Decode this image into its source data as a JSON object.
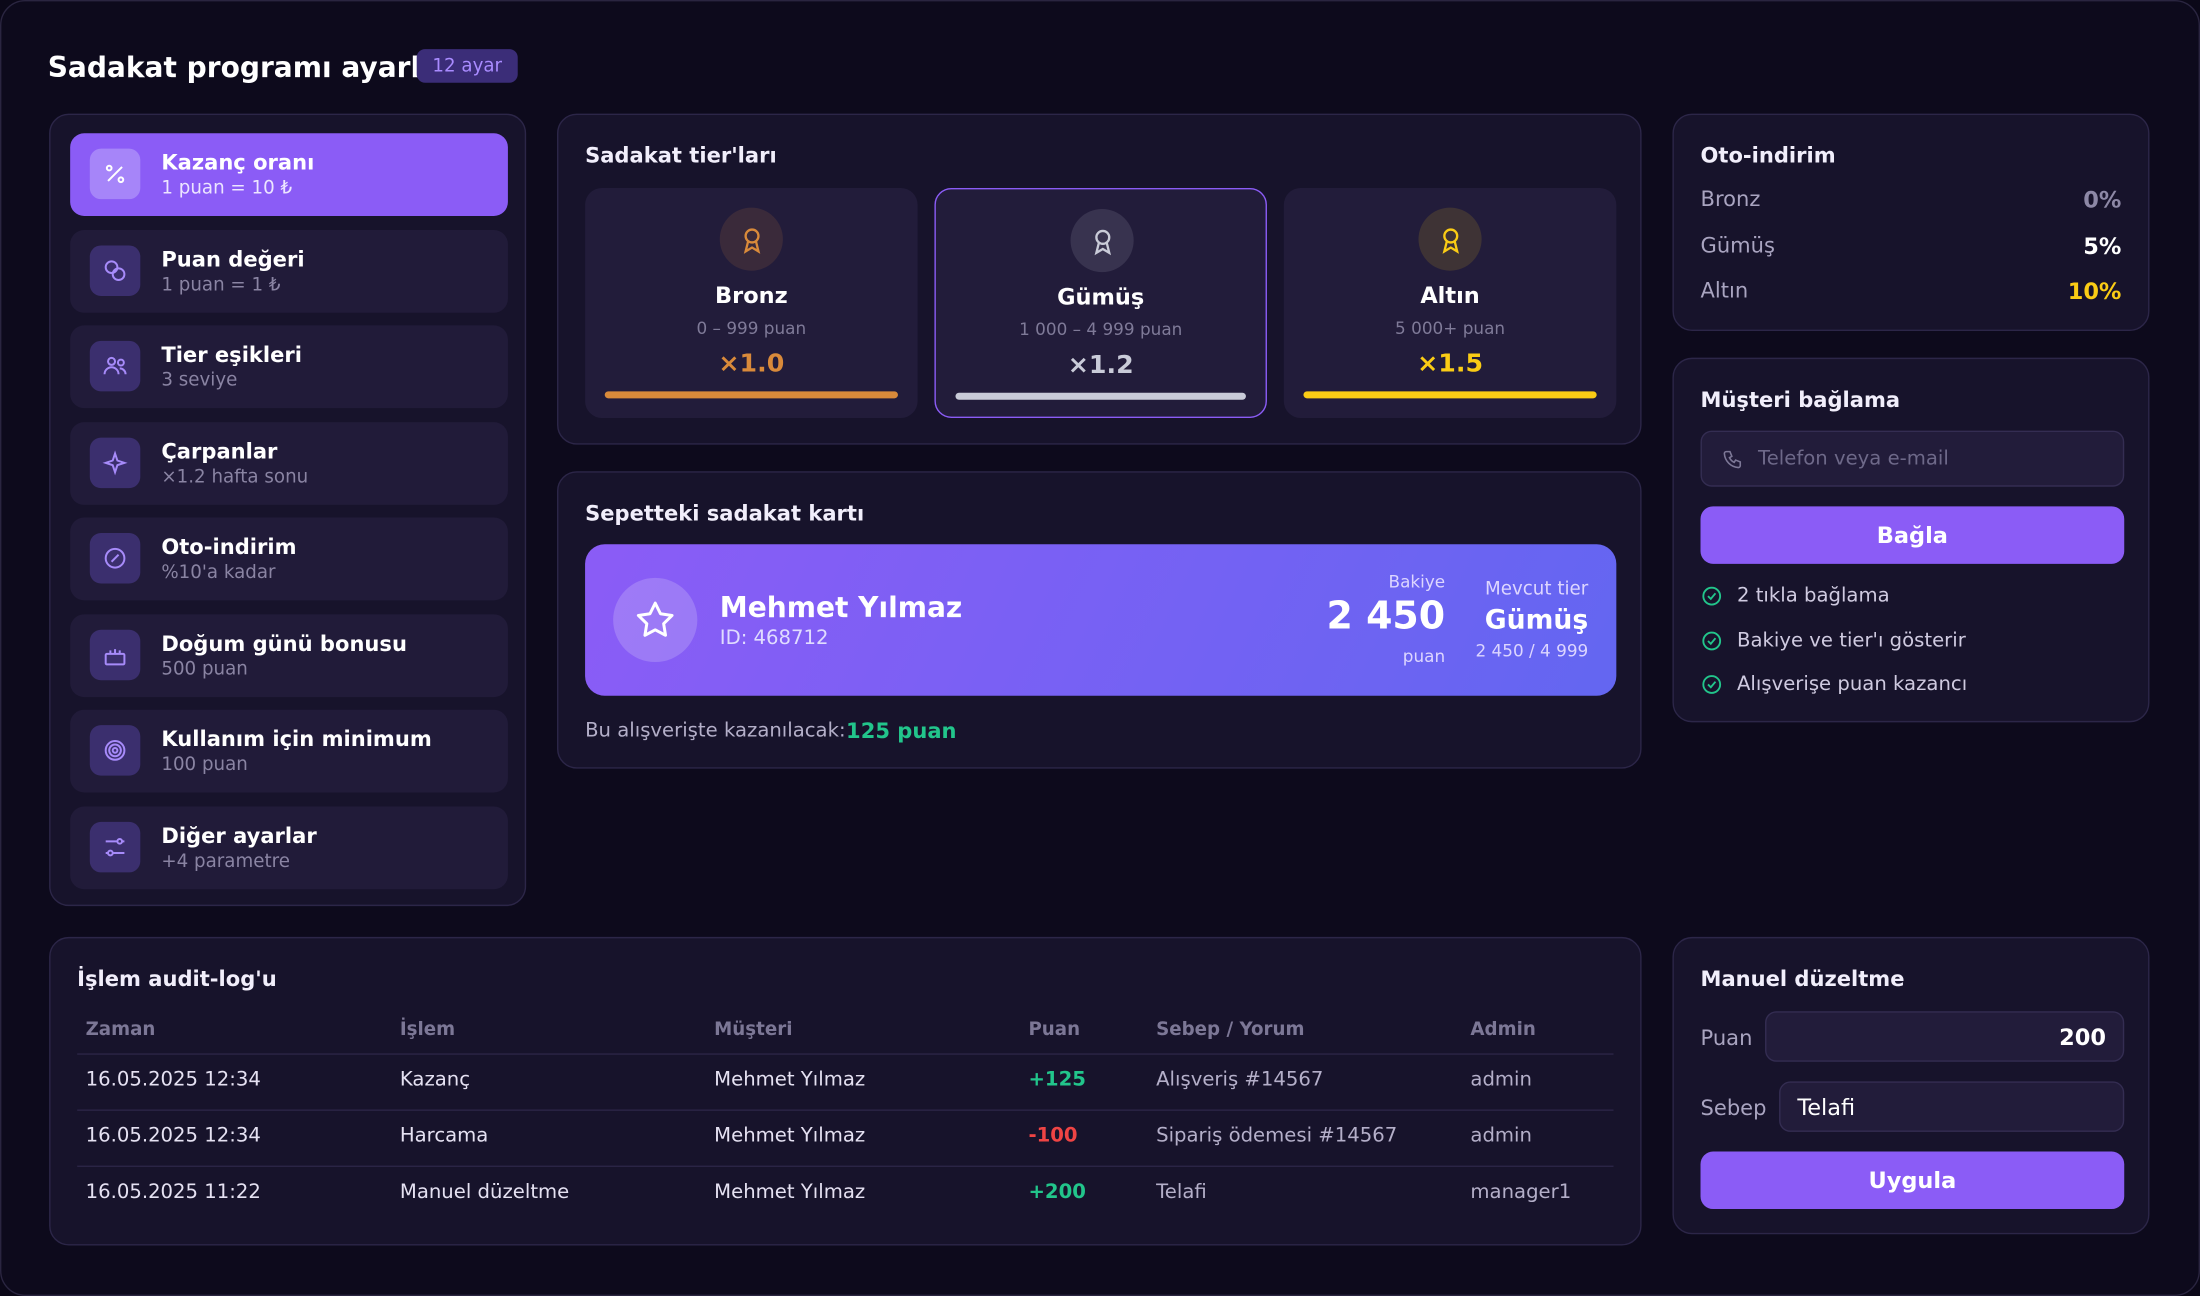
{
  "header": {
    "title": "Sadakat programı ayarları",
    "badge": "12 ayar"
  },
  "menu": [
    {
      "title": "Kazanç oranı",
      "subtitle": "1 puan = 10 ₺"
    },
    {
      "title": "Puan değeri",
      "subtitle": "1 puan = 1 ₺"
    },
    {
      "title": "Tier eşikleri",
      "subtitle": "3 seviye"
    },
    {
      "title": "Çarpanlar",
      "subtitle": "×1.2 hafta sonu"
    },
    {
      "title": "Oto-indirim",
      "subtitle": "%10'a kadar"
    },
    {
      "title": "Doğum günü bonusu",
      "subtitle": "500 puan"
    },
    {
      "title": "Kullanım için minimum",
      "subtitle": "100 puan"
    },
    {
      "title": "Diğer ayarlar",
      "subtitle": "+4 parametre"
    }
  ],
  "tiers": {
    "title": "Sadakat tier'ları",
    "items": [
      {
        "name": "Bronz",
        "range": "0 – 999 puan",
        "multiplier": "×1.0",
        "color": "#d98a3a"
      },
      {
        "name": "Gümüş",
        "range": "1 000 – 4 999 puan",
        "multiplier": "×1.2",
        "color": "#c9cbd8"
      },
      {
        "name": "Altın",
        "range": "5 000+ puan",
        "multiplier": "×1.5",
        "color": "#facc15"
      }
    ]
  },
  "auto_discount": {
    "title": "Oto-indirim",
    "rows": [
      {
        "name": "Bronz",
        "value": "0%",
        "color": "#8d88a6"
      },
      {
        "name": "Gümüş",
        "value": "5%",
        "color": "#ffffff"
      },
      {
        "name": "Altın",
        "value": "10%",
        "color": "#facc15"
      }
    ]
  },
  "cart": {
    "title": "Sepetteki sadakat kartı",
    "name": "Mehmet Yılmaz",
    "id": "ID: 468712",
    "balance_label": "Bakiye",
    "balance": "2 450",
    "balance_unit": "puan",
    "tier_label": "Mevcut tier",
    "tier": "Gümüş",
    "progress": "2 450 / 4 999",
    "earn_label": "Bu alışverişte kazanılacak:",
    "earn_value": "125 puan"
  },
  "link": {
    "title": "Müşteri bağlama",
    "placeholder": "Telefon veya e-mail",
    "button": "Bağla",
    "features": [
      "2 tıkla bağlama",
      "Bakiye ve tier'ı gösterir",
      "Alışverişe puan kazancı"
    ]
  },
  "audit": {
    "title": "İşlem audit-log'u",
    "columns": [
      "Zaman",
      "İşlem",
      "Müşteri",
      "Puan",
      "Sebep / Yorum",
      "Admin"
    ],
    "rows": [
      [
        "16.05.2025 12:34",
        "Kazanç",
        "Mehmet Yılmaz",
        "+125",
        "Alışveriş #14567",
        "admin"
      ],
      [
        "16.05.2025 12:34",
        "Harcama",
        "Mehmet Yılmaz",
        "-100",
        "Sipariş ödemesi #14567",
        "admin"
      ],
      [
        "16.05.2025 11:22",
        "Manuel düzeltme",
        "Mehmet Yılmaz",
        "+200",
        "Telafi",
        "manager1"
      ]
    ]
  },
  "manual": {
    "title": "Manuel düzeltme",
    "points_label": "Puan",
    "points_value": "200",
    "reason_label": "Sebep",
    "reason_value": "Telafi",
    "button": "Uygula"
  }
}
